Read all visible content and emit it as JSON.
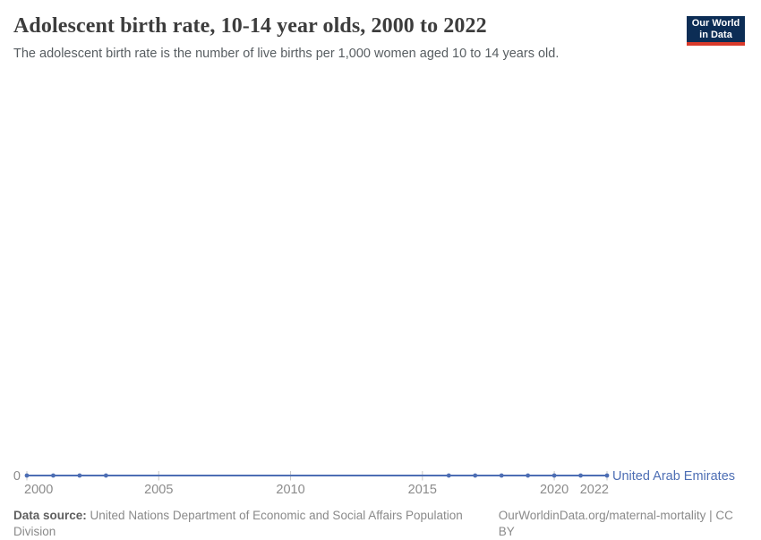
{
  "header": {
    "title": "Adolescent birth rate, 10-14 year olds, 2000 to 2022",
    "subtitle": "The adolescent birth rate is the number of live births per 1,000 women aged 10 to 14 years old.",
    "logo": {
      "line1": "Our World",
      "line2": "in Data"
    }
  },
  "chart_data": {
    "type": "line",
    "title": "Adolescent birth rate, 10-14 year olds, 2000 to 2022",
    "xlabel": "",
    "ylabel": "",
    "x": [
      2000,
      2001,
      2002,
      2003,
      2004,
      2005,
      2006,
      2007,
      2008,
      2009,
      2010,
      2011,
      2012,
      2013,
      2014,
      2015,
      2016,
      2017,
      2018,
      2019,
      2020,
      2021,
      2022
    ],
    "series": [
      {
        "name": "United Arab Emirates",
        "color": "#4d6eb4",
        "values": [
          0,
          0,
          0,
          0,
          0,
          0,
          0,
          0,
          0,
          0,
          0,
          0,
          0,
          0,
          0,
          0,
          0,
          0,
          0,
          0,
          0,
          0,
          0
        ],
        "marker_years": [
          2000,
          2001,
          2002,
          2003,
          2016,
          2017,
          2018,
          2019,
          2020,
          2021,
          2022
        ]
      }
    ],
    "x_ticks": [
      2000,
      2005,
      2010,
      2015,
      2020,
      2022
    ],
    "y_tick_label": "0",
    "xlim": [
      2000,
      2022
    ],
    "ylim": [
      0,
      0
    ],
    "grid": false,
    "legend_position": "end-of-line"
  },
  "footer": {
    "source_label": "Data source:",
    "source_text": "United Nations Department of Economic and Social Affairs Population Division",
    "credit": "OurWorldinData.org/maternal-mortality | CC BY"
  },
  "colors": {
    "series_blue": "#4d6eb4",
    "logo_navy": "#0c2d55",
    "logo_red": "#d93a2b",
    "axis_gray": "#8b8b8b",
    "tick_gray": "#c7c7c7",
    "title_gray": "#3d3d3d"
  }
}
